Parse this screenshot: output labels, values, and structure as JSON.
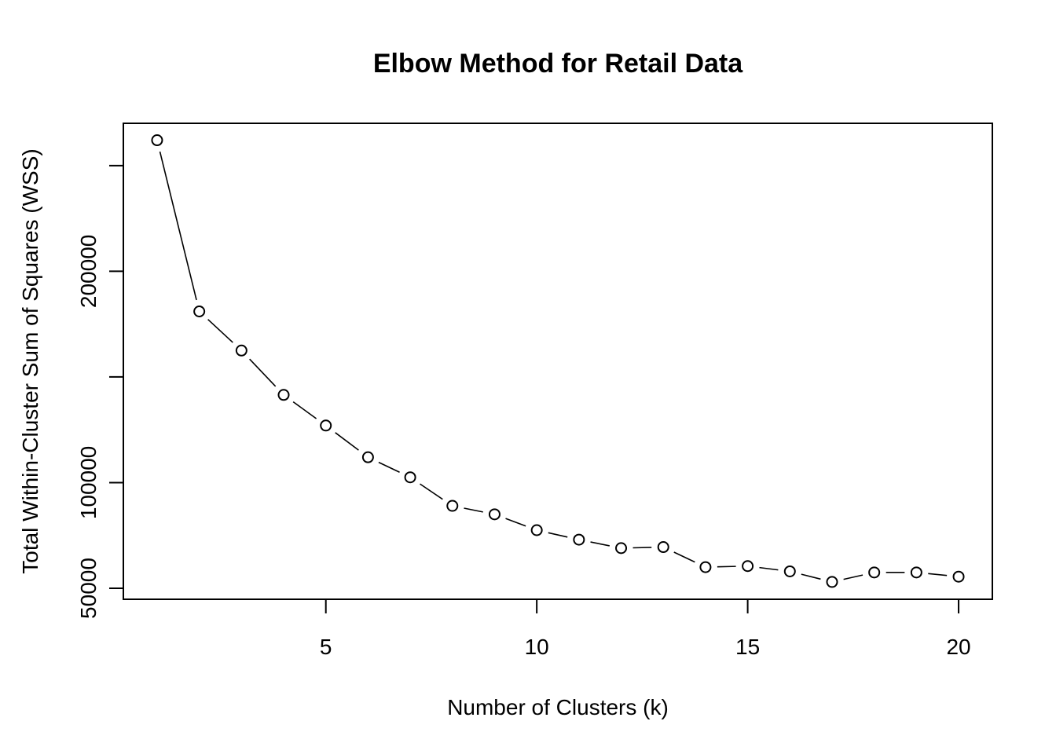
{
  "chart_data": {
    "type": "line",
    "title": "Elbow Method for Retail Data",
    "xlabel": "Number of Clusters (k)",
    "ylabel": "Total Within-Cluster Sum of Squares (WSS)",
    "x": [
      1,
      2,
      3,
      4,
      5,
      6,
      7,
      8,
      9,
      10,
      11,
      12,
      13,
      14,
      15,
      16,
      17,
      18,
      19,
      20
    ],
    "values": [
      262000,
      181000,
      162500,
      141500,
      127000,
      112000,
      102500,
      89000,
      85000,
      77500,
      73000,
      69000,
      69500,
      60000,
      60500,
      58000,
      53000,
      57500,
      57500,
      55500
    ],
    "xticks": [
      5,
      10,
      15,
      20
    ],
    "xtick_labels": [
      "5",
      "10",
      "15",
      "20"
    ],
    "yticks": [
      50000,
      100000,
      150000,
      200000,
      250000
    ],
    "ytick_labels": [
      "50000",
      "100000",
      "",
      "200000",
      ""
    ],
    "xlim": [
      0.2,
      20.8
    ],
    "ylim": [
      44800,
      270000
    ],
    "marker": "open-circle",
    "line_style": "solid-with-gaps",
    "grid": false,
    "legend": "none",
    "colors": {
      "line": "#000000",
      "marker": "#000000",
      "background": "#ffffff"
    }
  }
}
